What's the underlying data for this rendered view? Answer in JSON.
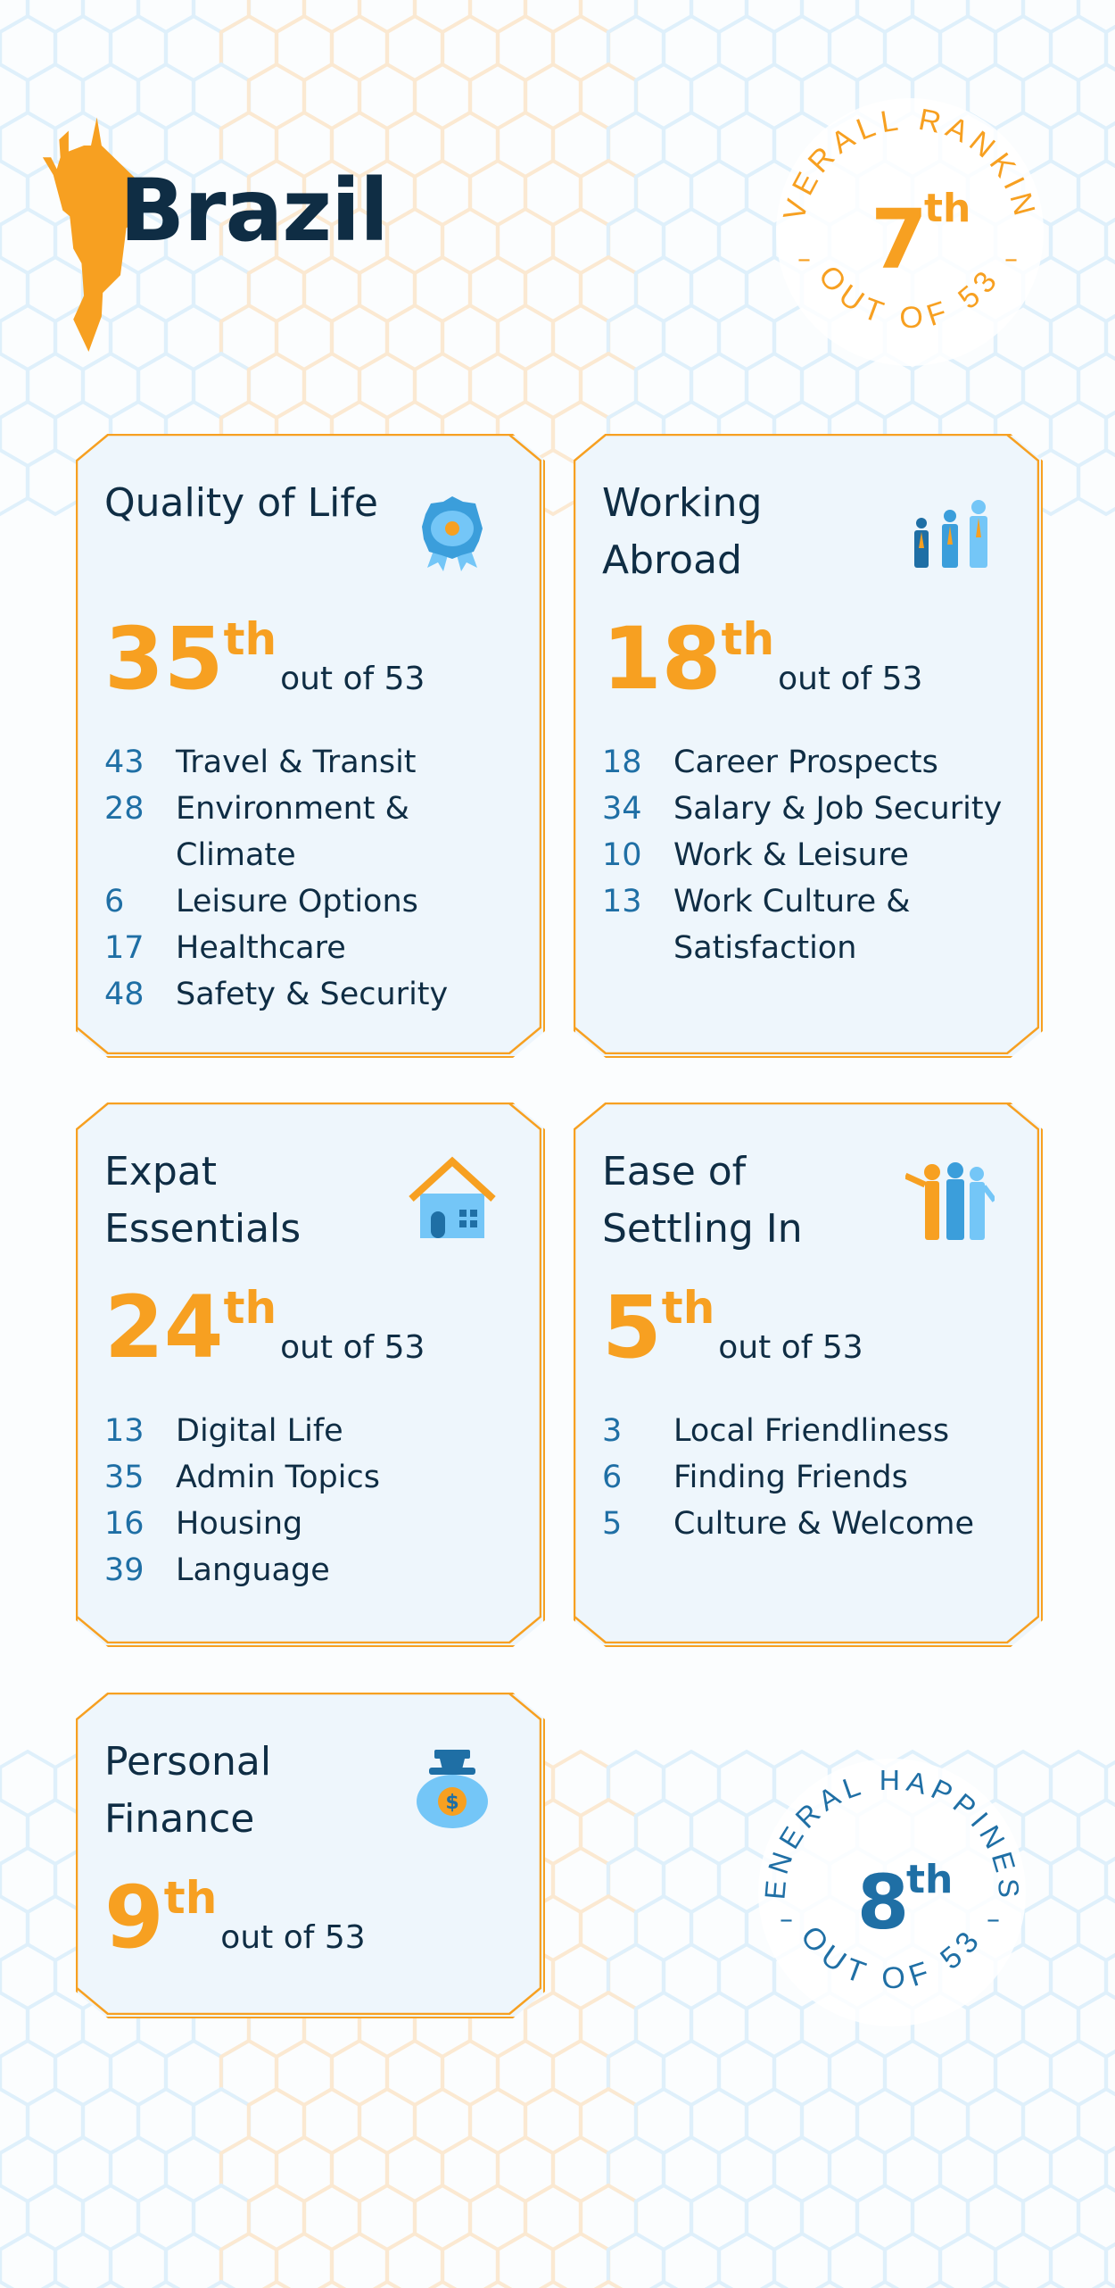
{
  "header": {
    "country": "Brazil",
    "map_icon": "brazil-map",
    "accent": "#f7a021",
    "dark": "#0f2d44",
    "blue": "#1f6fa5"
  },
  "overall": {
    "label": "OVERALL RANKING",
    "rank": "7",
    "suffix": "th",
    "out_of": "OUT OF 53"
  },
  "happiness": {
    "label": "GENERAL HAPPINESS",
    "rank": "8",
    "suffix": "th",
    "out_of": "OUT OF 53"
  },
  "cards": [
    {
      "title": "Quality of Life",
      "icon": "medal-icon",
      "rank": "35",
      "suffix": "th",
      "out_of": "out of 53",
      "items": [
        {
          "n": "43",
          "label": "Travel & Transit"
        },
        {
          "n": "28",
          "label": "Environment & Climate"
        },
        {
          "n": "6",
          "label": "Leisure Options"
        },
        {
          "n": "17",
          "label": "Healthcare"
        },
        {
          "n": "48",
          "label": "Safety & Security"
        }
      ]
    },
    {
      "title": "Working Abroad",
      "icon": "workers-icon",
      "rank": "18",
      "suffix": "th",
      "out_of": "out of 53",
      "items": [
        {
          "n": "18",
          "label": "Career Prospects"
        },
        {
          "n": "34",
          "label": "Salary & Job Security"
        },
        {
          "n": "10",
          "label": "Work & Leisure"
        },
        {
          "n": "13",
          "label": "Work Culture & Satisfaction"
        }
      ]
    },
    {
      "title": "Expat Essentials",
      "icon": "house-icon",
      "rank": "24",
      "suffix": "th",
      "out_of": "out of 53",
      "items": [
        {
          "n": "13",
          "label": "Digital Life"
        },
        {
          "n": "35",
          "label": "Admin Topics"
        },
        {
          "n": "16",
          "label": "Housing"
        },
        {
          "n": "39",
          "label": "Language"
        }
      ]
    },
    {
      "title": "Ease of Settling In",
      "icon": "people-welcome-icon",
      "rank": "5",
      "suffix": "th",
      "out_of": "out of 53",
      "items": [
        {
          "n": "3",
          "label": "Local Friendliness"
        },
        {
          "n": "6",
          "label": "Finding Friends"
        },
        {
          "n": "5",
          "label": "Culture & Welcome"
        }
      ]
    },
    {
      "title": "Personal Finance",
      "icon": "money-bag-icon",
      "rank": "9",
      "suffix": "th",
      "out_of": "out of 53",
      "items": []
    }
  ]
}
